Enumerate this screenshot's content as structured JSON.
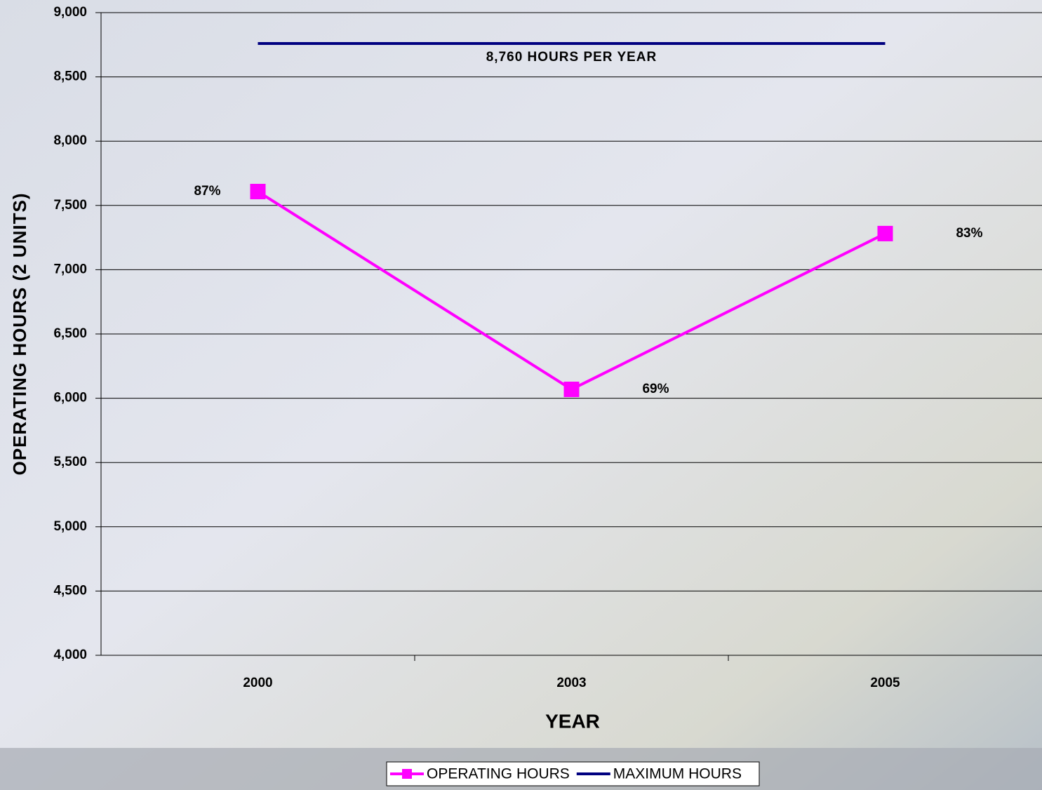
{
  "chart_data": {
    "type": "line",
    "categories": [
      "2000",
      "2003",
      "2005"
    ],
    "series": [
      {
        "name": "OPERATING HOURS",
        "color": "#ff00ff",
        "values": [
          7608,
          6069,
          7281
        ],
        "marker": "square"
      },
      {
        "name": "MAXIMUM HOURS",
        "color": "#000080",
        "values": [
          8760,
          8760,
          8760
        ]
      }
    ],
    "point_labels": [
      "87%",
      "69%",
      "83%"
    ],
    "annotation": "8,760 HOURS PER YEAR",
    "x_label": "YEAR",
    "y_label": "OPERATING HOURS (2 UNITS)",
    "ylim": [
      4000,
      9000
    ],
    "yticks": [
      {
        "value": 4000,
        "label": "4,000"
      },
      {
        "value": 4500,
        "label": "4,500"
      },
      {
        "value": 5000,
        "label": "5,000"
      },
      {
        "value": 5500,
        "label": "5,500"
      },
      {
        "value": 6000,
        "label": "6,000"
      },
      {
        "value": 6500,
        "label": "6,500"
      },
      {
        "value": 7000,
        "label": "7,000"
      },
      {
        "value": 7500,
        "label": "7,500"
      },
      {
        "value": 8000,
        "label": "8,000"
      },
      {
        "value": 8500,
        "label": "8,500"
      },
      {
        "value": 9000,
        "label": "9,000"
      }
    ],
    "grid": true,
    "legend": "bottom"
  }
}
